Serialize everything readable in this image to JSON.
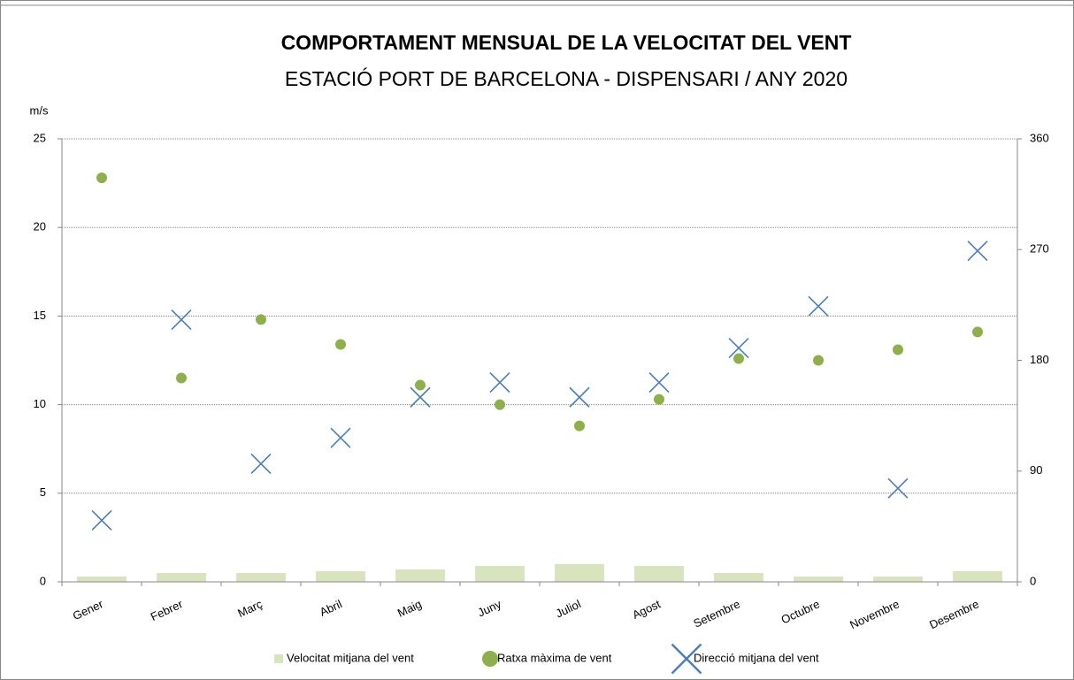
{
  "chart_data": {
    "type": "bar",
    "title": "COMPORTAMENT MENSUAL DE LA VELOCITAT DEL VENT",
    "subtitle": "ESTACIÓ PORT DE BARCELONA - DISPENSARI / ANY 2020",
    "y_label": "m/s",
    "categories": [
      "Gener",
      "Febrer",
      "Març",
      "Abril",
      "Maig",
      "Juny",
      "Juliol",
      "Agost",
      "Setembre",
      "Octubre",
      "Novembre",
      "Desembre"
    ],
    "series": [
      {
        "name": "Velocitat mitjana del vent",
        "type": "bar",
        "color": "#d7e4bd",
        "values": [
          0.3,
          0.5,
          0.5,
          0.6,
          0.7,
          0.9,
          1.0,
          0.9,
          0.5,
          0.3,
          0.3,
          0.6
        ]
      },
      {
        "name": "Ratxa màxima de vent",
        "type": "scatter",
        "marker": "circle",
        "color": "#8db04a",
        "values": [
          22.8,
          11.5,
          14.8,
          13.4,
          11.1,
          10.0,
          8.8,
          10.3,
          12.6,
          12.5,
          13.1,
          14.1
        ]
      },
      {
        "name": "Direcció mitjana del vent",
        "type": "scatter",
        "marker": "x",
        "color": "#4a7ebb",
        "axis": "y2",
        "values": [
          50,
          213,
          96,
          117,
          150,
          162,
          150,
          162,
          190,
          224,
          76,
          269
        ]
      }
    ],
    "ylim": [
      0,
      25
    ],
    "yticks": [
      0,
      5,
      10,
      15,
      20,
      25
    ],
    "y2lim": [
      0,
      360
    ],
    "y2ticks": [
      0,
      90,
      180,
      270,
      360
    ],
    "grid": true,
    "legend": "bottom"
  }
}
